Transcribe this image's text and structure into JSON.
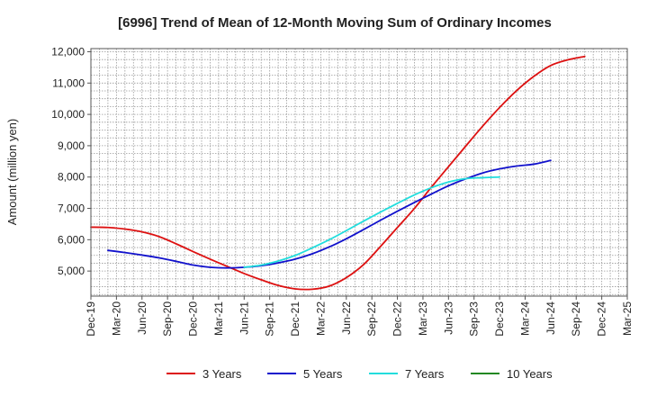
{
  "chart_data": {
    "type": "line",
    "title": "[6996]  Trend of Mean of 12-Month Moving Sum of Ordinary Incomes",
    "ylabel": "Amount (million yen)",
    "xlabel": "",
    "ylim": [
      4200,
      12100
    ],
    "yticks": [
      5000,
      6000,
      7000,
      8000,
      9000,
      10000,
      11000,
      12000
    ],
    "ytick_labels": [
      "5,000",
      "6,000",
      "7,000",
      "8,000",
      "9,000",
      "10,000",
      "11,000",
      "12,000"
    ],
    "xticks": [
      "Dec-19",
      "Mar-20",
      "Jun-20",
      "Sep-20",
      "Dec-20",
      "Mar-21",
      "Jun-21",
      "Sep-21",
      "Dec-21",
      "Mar-22",
      "Jun-22",
      "Sep-22",
      "Dec-22",
      "Mar-23",
      "Jun-23",
      "Sep-23",
      "Dec-23",
      "Mar-24",
      "Jun-24",
      "Sep-24",
      "Dec-24",
      "Mar-25"
    ],
    "grid": true,
    "legend_position": "bottom",
    "series": [
      {
        "name": "3 Years",
        "color": "#dd1111",
        "start_index": 0,
        "values": [
          6400,
          6390,
          6340,
          6250,
          6100,
          5870,
          5620,
          5380,
          5150,
          4920,
          4720,
          4540,
          4430,
          4420,
          4520,
          4790,
          5200,
          5780,
          6390,
          7000,
          7680,
          8330,
          8980,
          9620,
          10220,
          10760,
          11210,
          11560,
          11740,
          11850
        ]
      },
      {
        "name": "5 Years",
        "color": "#1111cc",
        "start_index": 1,
        "values": [
          5660,
          5590,
          5510,
          5420,
          5310,
          5190,
          5120,
          5100,
          5120,
          5170,
          5260,
          5380,
          5550,
          5770,
          6030,
          6320,
          6620,
          6910,
          7190,
          7460,
          7720,
          7940,
          8130,
          8260,
          8350,
          8410,
          8530
        ]
      },
      {
        "name": "7 Years",
        "color": "#22dddd",
        "start_index": 9,
        "values": [
          5120,
          5190,
          5320,
          5500,
          5740,
          6000,
          6290,
          6590,
          6880,
          7160,
          7430,
          7660,
          7840,
          7950,
          7980,
          8000
        ]
      },
      {
        "name": "10 Years",
        "color": "#228822",
        "start_index": 0,
        "values": []
      }
    ]
  }
}
